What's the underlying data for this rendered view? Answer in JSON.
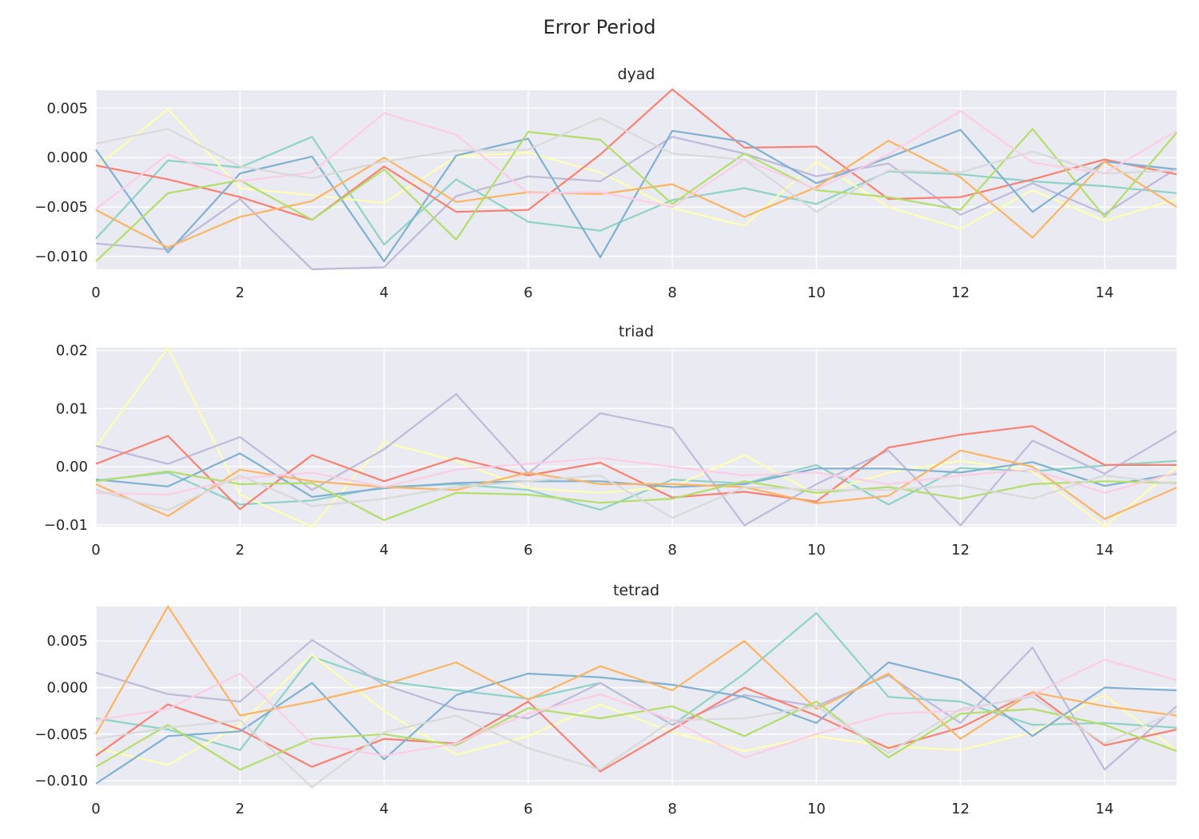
{
  "figure": {
    "title": "Error Period"
  },
  "palette": [
    "#8dd3c7",
    "#ffffb3",
    "#bebada",
    "#fb8072",
    "#80b1d3",
    "#fdb462",
    "#b3de69",
    "#fccde5",
    "#d9d9d9"
  ],
  "chart_data": [
    {
      "type": "line",
      "title": "dyad",
      "xlabel": "",
      "ylabel": "",
      "xlim": [
        0,
        15
      ],
      "ylim": [
        -0.0113,
        0.0068
      ],
      "xticks": [
        0,
        2,
        4,
        6,
        8,
        10,
        12,
        14
      ],
      "yticks": [
        0.005,
        0.0,
        -0.005,
        -0.01
      ],
      "ytick_labels": [
        "0.005",
        "0.000",
        "−0.005",
        "−0.010"
      ],
      "grid": true,
      "x": [
        0,
        1,
        2,
        3,
        4,
        5,
        6,
        7,
        8,
        9,
        10,
        11,
        12,
        13,
        14,
        15
      ],
      "series": [
        {
          "values": [
            -0.0082,
            -0.0003,
            -0.001,
            0.0021,
            -0.0088,
            -0.0022,
            -0.0065,
            -0.0074,
            -0.0043,
            -0.0031,
            -0.0047,
            -0.0014,
            -0.0017,
            -0.0024,
            -0.0029,
            -0.0036
          ]
        },
        {
          "values": [
            -0.001,
            0.0049,
            -0.0031,
            -0.0038,
            -0.0046,
            0.0001,
            0.0005,
            -0.0015,
            -0.0051,
            -0.0069,
            -0.0004,
            -0.005,
            -0.0072,
            -0.0033,
            -0.0064,
            -0.0042
          ]
        },
        {
          "values": [
            -0.0087,
            -0.0093,
            -0.0042,
            -0.0113,
            -0.0111,
            -0.0039,
            -0.0019,
            -0.0024,
            0.0021,
            0.0004,
            -0.0019,
            -0.0006,
            -0.0058,
            -0.0026,
            -0.0057,
            -0.0011
          ]
        },
        {
          "values": [
            -0.0008,
            -0.0022,
            -0.004,
            -0.0063,
            -0.0009,
            -0.0055,
            -0.0053,
            0.0003,
            0.0069,
            0.001,
            0.0011,
            -0.0042,
            -0.004,
            -0.0022,
            -0.0002,
            -0.0017
          ]
        },
        {
          "values": [
            0.0008,
            -0.0096,
            -0.0016,
            0.0001,
            -0.0105,
            0.0002,
            0.0019,
            -0.0101,
            0.0027,
            0.0016,
            -0.0026,
            0.0,
            0.0028,
            -0.0055,
            -0.0004,
            -0.0012
          ]
        },
        {
          "values": [
            -0.0053,
            -0.0091,
            -0.006,
            -0.0044,
            0.0,
            -0.0045,
            -0.0035,
            -0.0037,
            -0.0027,
            -0.006,
            -0.003,
            0.0017,
            -0.002,
            -0.0081,
            -0.0004,
            -0.005
          ]
        },
        {
          "values": [
            -0.0105,
            -0.0036,
            -0.0023,
            -0.0063,
            -0.0012,
            -0.0083,
            0.0026,
            0.0018,
            -0.0047,
            0.0004,
            -0.0033,
            -0.004,
            -0.0053,
            0.0029,
            -0.006,
            0.0025
          ]
        },
        {
          "values": [
            -0.0052,
            0.0003,
            -0.0024,
            -0.0015,
            0.0045,
            0.0023,
            -0.0036,
            -0.0035,
            -0.005,
            -0.0002,
            -0.0032,
            0.0003,
            0.0047,
            -0.0005,
            -0.0016,
            0.0027
          ]
        },
        {
          "values": [
            0.0014,
            0.0029,
            -0.0009,
            -0.0021,
            -0.0004,
            0.0007,
            0.0008,
            0.004,
            0.0004,
            -0.0002,
            -0.0055,
            -0.0013,
            -0.0015,
            0.0006,
            -0.0016,
            -0.0013
          ]
        }
      ]
    },
    {
      "type": "line",
      "title": "triad",
      "xlabel": "",
      "ylabel": "",
      "xlim": [
        0,
        15
      ],
      "ylim": [
        -0.0103,
        0.0205
      ],
      "xticks": [
        0,
        2,
        4,
        6,
        8,
        10,
        12,
        14
      ],
      "yticks": [
        0.02,
        0.01,
        0.0,
        -0.01
      ],
      "ytick_labels": [
        "0.02",
        "0.01",
        "0.00",
        "−0.01"
      ],
      "grid": true,
      "x": [
        0,
        1,
        2,
        3,
        4,
        5,
        6,
        7,
        8,
        9,
        10,
        11,
        12,
        13,
        14,
        15
      ],
      "series": [
        {
          "values": [
            -0.0024,
            -0.001,
            -0.0065,
            -0.0058,
            -0.0035,
            -0.003,
            -0.004,
            -0.0074,
            -0.0022,
            -0.0029,
            0.0003,
            -0.0065,
            -0.0002,
            -0.0008,
            0.0002,
            0.001
          ]
        },
        {
          "values": [
            0.0034,
            0.0205,
            -0.0048,
            -0.0103,
            0.0042,
            0.001,
            -0.0037,
            -0.0045,
            -0.0035,
            0.002,
            -0.0048,
            -0.001,
            0.001,
            -0.0008,
            -0.0103,
            0.0
          ]
        },
        {
          "values": [
            0.0036,
            0.0005,
            0.0051,
            -0.004,
            0.003,
            0.0125,
            -0.0012,
            0.0092,
            0.0067,
            -0.0101,
            -0.003,
            0.0028,
            -0.0101,
            0.0045,
            -0.0012,
            0.0061
          ]
        },
        {
          "values": [
            0.0005,
            0.0053,
            -0.0073,
            0.002,
            -0.0025,
            0.0015,
            -0.0015,
            0.0007,
            -0.0053,
            -0.0043,
            -0.006,
            0.0033,
            0.0055,
            0.007,
            0.0003,
            0.0003
          ]
        },
        {
          "values": [
            -0.0022,
            -0.0034,
            0.0023,
            -0.0052,
            -0.0037,
            -0.0028,
            -0.0025,
            -0.0025,
            -0.0035,
            -0.003,
            -0.0003,
            -0.0003,
            -0.001,
            0.0008,
            -0.0033,
            -0.0012
          ]
        },
        {
          "values": [
            -0.003,
            -0.0085,
            -0.0005,
            -0.0025,
            -0.0035,
            -0.004,
            -0.001,
            -0.003,
            -0.003,
            -0.0035,
            -0.0063,
            -0.005,
            0.0028,
            0.0,
            -0.009,
            -0.0036
          ]
        },
        {
          "values": [
            -0.0025,
            -0.0008,
            -0.003,
            -0.0028,
            -0.0092,
            -0.0045,
            -0.0048,
            -0.0062,
            -0.0055,
            -0.0025,
            -0.0045,
            -0.0035,
            -0.0055,
            -0.003,
            -0.0025,
            -0.0028
          ]
        },
        {
          "values": [
            -0.0045,
            -0.0048,
            -0.002,
            -0.001,
            -0.0035,
            -0.0005,
            0.0005,
            0.0015,
            0.0,
            -0.0015,
            -0.001,
            -0.003,
            -0.0015,
            -0.0005,
            -0.0045,
            -0.001
          ]
        },
        {
          "values": [
            -0.004,
            -0.0075,
            -0.0015,
            -0.0068,
            -0.0055,
            -0.0035,
            -0.0025,
            -0.0015,
            -0.0088,
            -0.0035,
            -0.004,
            -0.004,
            -0.0032,
            -0.0055,
            -0.0015,
            -0.003
          ]
        }
      ]
    },
    {
      "type": "line",
      "title": "tetrad",
      "xlabel": "",
      "ylabel": "",
      "xlim": [
        0,
        15
      ],
      "ylim": [
        -0.0105,
        0.0087
      ],
      "xticks": [
        0,
        2,
        4,
        6,
        8,
        10,
        12,
        14
      ],
      "yticks": [
        0.005,
        0.0,
        -0.005,
        -0.01
      ],
      "ytick_labels": [
        "0.005",
        "0.000",
        "−0.005",
        "−0.010"
      ],
      "grid": true,
      "x": [
        0,
        1,
        2,
        3,
        4,
        5,
        6,
        7,
        8,
        9,
        10,
        11,
        12,
        13,
        14,
        15
      ],
      "series": [
        {
          "values": [
            -0.0033,
            -0.0045,
            -0.0067,
            0.0033,
            0.0007,
            -0.0003,
            -0.0012,
            0.0005,
            -0.004,
            0.0015,
            0.008,
            -0.001,
            -0.0015,
            -0.004,
            -0.0038,
            -0.0043
          ]
        },
        {
          "values": [
            -0.0065,
            -0.0083,
            -0.004,
            0.0035,
            -0.0025,
            -0.0072,
            -0.0052,
            -0.0018,
            -0.0048,
            -0.0068,
            -0.0052,
            -0.0063,
            -0.0067,
            -0.0048,
            -0.0008,
            -0.0068
          ]
        },
        {
          "values": [
            0.0016,
            -0.0007,
            -0.0015,
            0.0051,
            0.0003,
            -0.0023,
            -0.0033,
            0.0005,
            -0.004,
            -0.0008,
            -0.002,
            0.0013,
            -0.0038,
            0.0043,
            -0.0088,
            -0.002
          ]
        },
        {
          "values": [
            -0.0073,
            -0.0018,
            -0.0045,
            -0.0085,
            -0.0055,
            -0.006,
            -0.0015,
            -0.009,
            -0.0045,
            0.0,
            -0.003,
            -0.0065,
            -0.0043,
            -0.0005,
            -0.0062,
            -0.0045
          ]
        },
        {
          "values": [
            -0.0103,
            -0.0052,
            -0.0047,
            0.0005,
            -0.0077,
            -0.0008,
            0.0015,
            0.0011,
            0.0003,
            -0.001,
            -0.0038,
            0.0027,
            0.0008,
            -0.0052,
            0.0,
            -0.0003
          ]
        },
        {
          "values": [
            -0.005,
            0.0087,
            -0.003,
            -0.0015,
            0.0003,
            0.0027,
            -0.0013,
            0.0023,
            -0.0003,
            0.005,
            -0.0023,
            0.0015,
            -0.0055,
            -0.0005,
            -0.002,
            -0.003
          ]
        },
        {
          "values": [
            -0.0085,
            -0.004,
            -0.0088,
            -0.0055,
            -0.005,
            -0.0062,
            -0.0022,
            -0.0033,
            -0.002,
            -0.0052,
            -0.0015,
            -0.0075,
            -0.0028,
            -0.0023,
            -0.004,
            -0.0068
          ]
        },
        {
          "values": [
            -0.0035,
            -0.0023,
            0.0015,
            -0.006,
            -0.0073,
            -0.006,
            -0.0028,
            -0.0007,
            -0.0035,
            -0.0075,
            -0.005,
            -0.0028,
            -0.0025,
            -0.0008,
            0.003,
            0.0008
          ]
        },
        {
          "values": [
            -0.0055,
            -0.0043,
            -0.0035,
            -0.0107,
            -0.0048,
            -0.003,
            -0.0065,
            -0.0088,
            -0.0035,
            -0.0033,
            -0.002,
            -0.007,
            -0.0023,
            -0.001,
            -0.006,
            -0.0025
          ]
        }
      ]
    }
  ]
}
